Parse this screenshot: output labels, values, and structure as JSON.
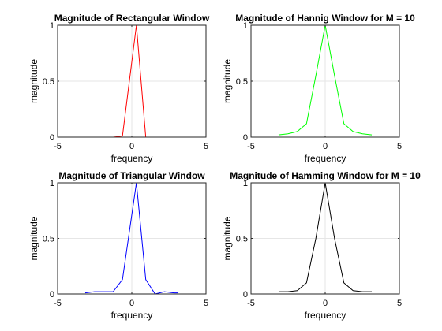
{
  "chart_data": [
    {
      "type": "line",
      "title": "Magnitude of Rectangular Window",
      "xlabel": "frequency",
      "ylabel": "magnitude",
      "xlim": [
        -5,
        5
      ],
      "ylim": [
        0,
        1
      ],
      "xticks": [
        "-5",
        "0",
        "5"
      ],
      "yticks": [
        "0",
        "0.5",
        "1"
      ],
      "grid": true,
      "color": "#ff0000",
      "x": [
        -3.14,
        -2.51,
        -1.88,
        -1.26,
        -0.63,
        0.31,
        0.94,
        1.57,
        2.2,
        2.83,
        3.14
      ],
      "y": [
        0,
        0,
        0,
        0,
        0.01,
        1,
        0,
        0,
        0,
        0,
        0
      ]
    },
    {
      "type": "line",
      "title": "Magnitude of Hannig Window for M = 10",
      "xlabel": "frequency",
      "ylabel": "magnitude",
      "xlim": [
        -5,
        5
      ],
      "ylim": [
        0,
        1
      ],
      "xticks": [
        "-5",
        "0",
        "5"
      ],
      "yticks": [
        "0",
        "0.5",
        "1"
      ],
      "grid": true,
      "color": "#00ff00",
      "x": [
        -3.14,
        -2.51,
        -1.88,
        -1.26,
        -0.63,
        0,
        0.63,
        1.26,
        1.88,
        2.51,
        3.14
      ],
      "y": [
        0.02,
        0.03,
        0.05,
        0.12,
        0.55,
        1,
        0.55,
        0.12,
        0.05,
        0.03,
        0.02
      ]
    },
    {
      "type": "line",
      "title": "Magnitude of Triangular Window",
      "xlabel": "frequency",
      "ylabel": "magnitude",
      "xlim": [
        -5,
        5
      ],
      "ylim": [
        0,
        1
      ],
      "xticks": [
        "-5",
        "0",
        "5"
      ],
      "yticks": [
        "0",
        "0.5",
        "1"
      ],
      "grid": true,
      "color": "#0000ff",
      "x": [
        -3.14,
        -2.51,
        -1.88,
        -1.26,
        -0.63,
        0.31,
        0.94,
        1.57,
        2.2,
        2.83,
        3.14
      ],
      "y": [
        0.01,
        0.02,
        0.02,
        0.02,
        0.13,
        1,
        0.13,
        0.0,
        0.02,
        0.01,
        0.01
      ]
    },
    {
      "type": "line",
      "title": "Magnitude of Hamming Window for M = 10",
      "xlabel": "frequency",
      "ylabel": "magnitude",
      "xlim": [
        -5,
        5
      ],
      "ylim": [
        0,
        1
      ],
      "xticks": [
        "-5",
        "0",
        "5"
      ],
      "yticks": [
        "0",
        "0.5",
        "1"
      ],
      "grid": true,
      "color": "#000000",
      "x": [
        -3.14,
        -2.51,
        -1.88,
        -1.26,
        -0.63,
        0,
        0.63,
        1.26,
        1.88,
        2.51,
        3.14
      ],
      "y": [
        0.02,
        0.02,
        0.03,
        0.1,
        0.5,
        1,
        0.5,
        0.1,
        0.03,
        0.02,
        0.02
      ]
    }
  ]
}
